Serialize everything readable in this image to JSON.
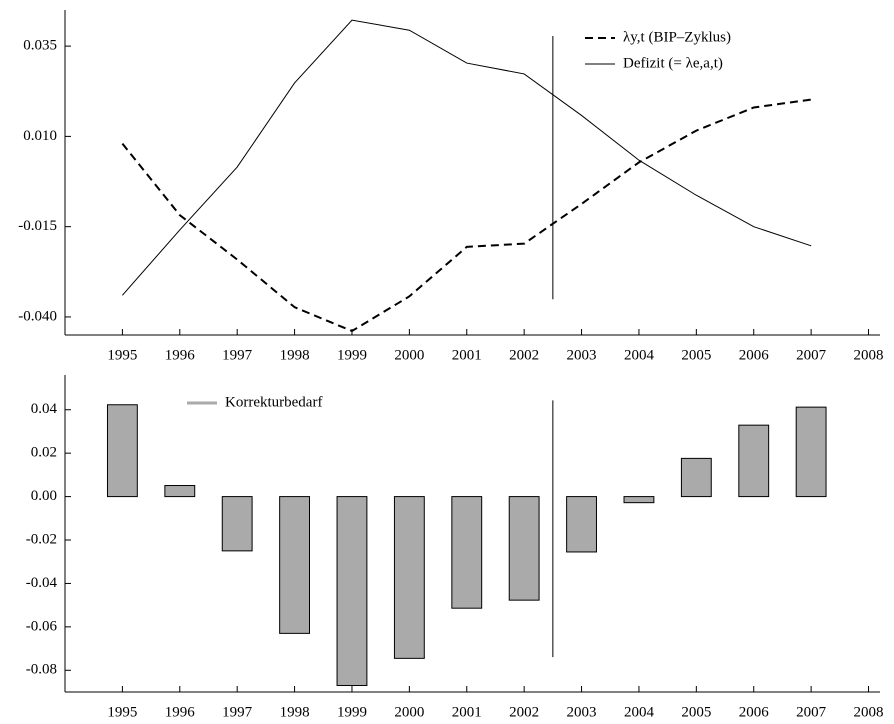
{
  "chart_data": [
    {
      "type": "line",
      "x": [
        1995,
        1996,
        1997,
        1998,
        1999,
        2000,
        2001,
        2002,
        2003,
        2004,
        2005,
        2006,
        2007
      ],
      "series": [
        {
          "name": "λy,t (BIP–Zyklus)",
          "color": "#000000",
          "line_style": "dashed",
          "values": [
            0.008,
            -0.0118,
            -0.0241,
            -0.0373,
            -0.0439,
            -0.0343,
            -0.0206,
            -0.0197,
            -0.0087,
            0.0028,
            0.0116,
            0.018,
            0.0202
          ]
        },
        {
          "name": "Defizit (= λe,a,t)",
          "color": "#000000",
          "line_style": "solid",
          "values": [
            -0.034,
            -0.0159,
            0.0015,
            0.0248,
            0.0422,
            0.0394,
            0.0303,
            0.0273,
            0.0158,
            0.0034,
            -0.0063,
            -0.015,
            -0.0203
          ]
        }
      ],
      "xlim": [
        1994,
        2008.2
      ],
      "xticks": [
        1995,
        1996,
        1997,
        1998,
        1999,
        2000,
        2001,
        2002,
        2003,
        2004,
        2005,
        2006,
        2007,
        2008
      ],
      "ylim": [
        -0.045,
        0.045
      ],
      "yticks": [
        {
          "value": -0.04,
          "label": "-0.040"
        },
        {
          "value": -0.015,
          "label": "-0.015"
        },
        {
          "value": 0.01,
          "label": "0.010"
        },
        0.035
      ],
      "vertical_line": 2002.5,
      "legend": "top-right"
    },
    {
      "type": "bar",
      "x": [
        1995,
        1996,
        1997,
        1998,
        1999,
        2000,
        2001,
        2002,
        2003,
        2004,
        2005,
        2006,
        2007
      ],
      "series": [
        {
          "name": "Korrekturbedarf",
          "color": "#aaaaaa",
          "values": [
            0.0423,
            0.0051,
            -0.025,
            -0.063,
            -0.087,
            -0.0745,
            -0.0514,
            -0.0477,
            -0.0255,
            -0.0028,
            0.0176,
            0.0329,
            0.0412
          ]
        }
      ],
      "xlim": [
        1994,
        2008.2
      ],
      "xticks": [
        1995,
        1996,
        1997,
        1998,
        1999,
        2000,
        2001,
        2002,
        2003,
        2004,
        2005,
        2006,
        2007,
        2008
      ],
      "ylim": [
        -0.09,
        0.056
      ],
      "yticks": [
        {
          "value": -0.08,
          "label": "-0.08"
        },
        {
          "value": -0.06,
          "label": "-0.06"
        },
        {
          "value": -0.04,
          "label": "-0.04"
        },
        {
          "value": -0.02,
          "label": "-0.02"
        },
        {
          "value": 0,
          "label": "0.00"
        },
        0.02,
        0.04
      ],
      "vertical_line": 2002.5,
      "legend": "top-left"
    }
  ]
}
